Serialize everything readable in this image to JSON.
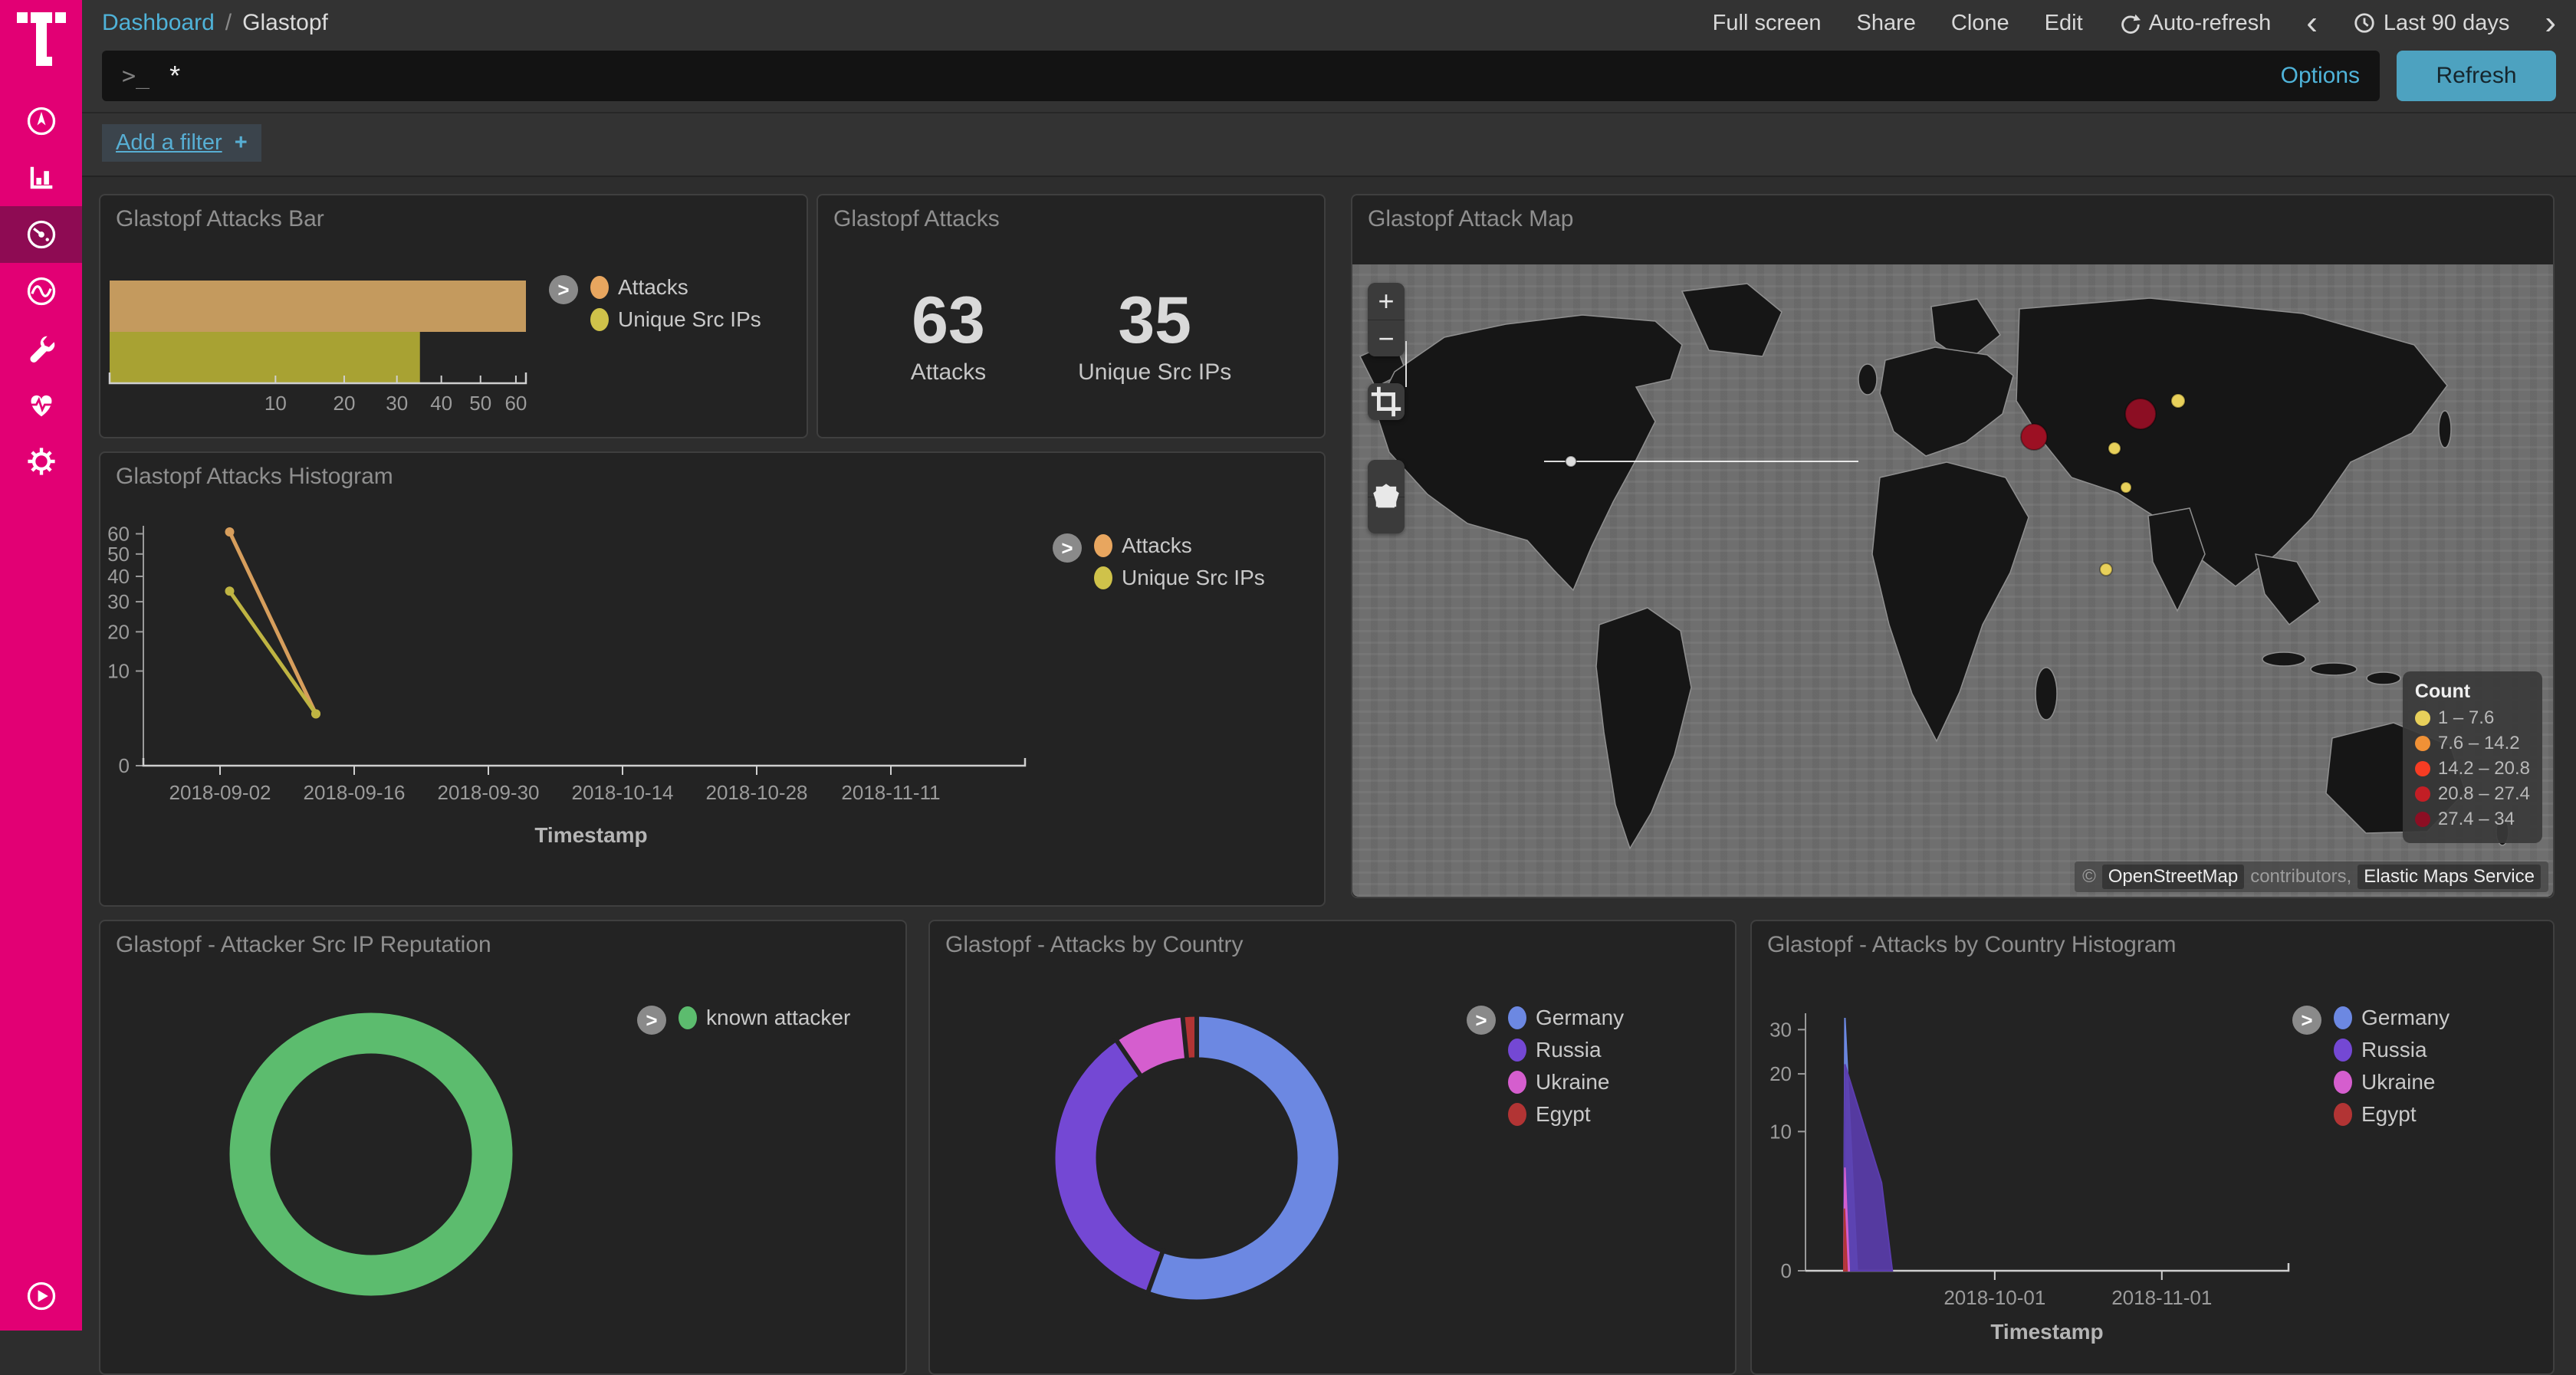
{
  "sidebar": {
    "items": [
      {
        "id": "discover",
        "icon": "compass-icon"
      },
      {
        "id": "visualize",
        "icon": "bar-chart-icon"
      },
      {
        "id": "dashboard",
        "icon": "gauge-icon",
        "selected": true
      },
      {
        "id": "timelion",
        "icon": "wave-icon"
      },
      {
        "id": "dev-tools",
        "icon": "wrench-icon"
      },
      {
        "id": "monitoring",
        "icon": "heartbeat-icon"
      },
      {
        "id": "management",
        "icon": "gear-icon"
      }
    ]
  },
  "topbar": {
    "breadcrumb": {
      "root": "Dashboard",
      "separator": "/",
      "current": "Glastopf"
    },
    "actions": [
      "Full screen",
      "Share",
      "Clone",
      "Edit"
    ],
    "auto_refresh": "Auto-refresh",
    "prev": "‹",
    "next": "›",
    "time_range": "Last 90 days"
  },
  "query_bar": {
    "prompt": ">_",
    "value": "*",
    "options": "Options",
    "refresh": "Refresh"
  },
  "filter_bar": {
    "label": "Add a filter",
    "plus": "+"
  },
  "map_controls": {
    "zoom_in": "+",
    "zoom_out": "−"
  },
  "chart_data": [
    {
      "id": "glastopf-attacks-bar",
      "type": "bar",
      "orientation": "horizontal",
      "title": "Glastopf Attacks Bar",
      "series": [
        {
          "name": "Attacks",
          "value": 63,
          "color": "#c49a5e",
          "legend_color": "#e8a65f"
        },
        {
          "name": "Unique Src IPs",
          "value": 35,
          "color": "#a8a233",
          "legend_color": "#cfc24a"
        }
      ],
      "x_ticks": [
        10,
        20,
        30,
        40,
        50,
        60
      ],
      "x_scale": "sqrt",
      "x_max": 63
    },
    {
      "id": "glastopf-attacks-metric",
      "type": "metric",
      "title": "Glastopf Attacks",
      "metrics": [
        {
          "label": "Attacks",
          "value": "63"
        },
        {
          "label": "Unique Src IPs",
          "value": "35"
        }
      ]
    },
    {
      "id": "glastopf-attack-map",
      "type": "map",
      "title": "Glastopf Attack Map",
      "legend_title": "Count",
      "legend": [
        {
          "label": "1 – 7.6",
          "color": "#e8d05a"
        },
        {
          "label": "7.6 – 14.2",
          "color": "#f09136"
        },
        {
          "label": "14.2 – 20.8",
          "color": "#f63c23"
        },
        {
          "label": "20.8 – 27.4",
          "color": "#c31e25"
        },
        {
          "label": "27.4 – 34",
          "color": "#8c0e23"
        }
      ],
      "points": [
        {
          "x": 1028,
          "y": 195,
          "r": 20,
          "color": "#8c0e23"
        },
        {
          "x": 889,
          "y": 225,
          "r": 17,
          "color": "#9c1023"
        },
        {
          "x": 1077,
          "y": 178,
          "r": 9,
          "color": "#e8d05a"
        },
        {
          "x": 994,
          "y": 240,
          "r": 8,
          "color": "#e8d05a"
        },
        {
          "x": 983,
          "y": 398,
          "r": 8,
          "color": "#e8d05a"
        },
        {
          "x": 1009,
          "y": 291,
          "r": 7,
          "color": "#e8d05a"
        },
        {
          "x": 285,
          "y": 257,
          "r": 7,
          "color": "#dddddd"
        }
      ],
      "attribution": {
        "copyright": "©",
        "osm": "OpenStreetMap",
        "middle": "contributors,",
        "ems": "Elastic Maps Service"
      }
    },
    {
      "id": "glastopf-attacks-histogram",
      "type": "line",
      "title": "Glastopf Attacks Histogram",
      "x_points": [
        "2018-09-03",
        "2018-09-12"
      ],
      "series": [
        {
          "name": "Attacks",
          "values": [
            61,
            3
          ],
          "color": "#d79e5c",
          "legend_color": "#e8a65f"
        },
        {
          "name": "Unique Src IPs",
          "values": [
            34,
            3
          ],
          "color": "#bfb442",
          "legend_color": "#cfc24a"
        }
      ],
      "x_ticks": [
        "2018-09-02",
        "2018-09-16",
        "2018-09-30",
        "2018-10-14",
        "2018-10-28",
        "2018-11-11"
      ],
      "y_ticks": [
        0,
        10,
        20,
        30,
        40,
        50,
        60
      ],
      "y_scale": "sqrt",
      "y_max": 63,
      "xlabel": "Timestamp"
    },
    {
      "id": "glastopf-attacker-src-ip-reputation",
      "type": "pie",
      "donut": true,
      "title": "Glastopf - Attacker Src IP Reputation",
      "slices": [
        {
          "label": "known attacker",
          "value": 35,
          "color": "#5cbc6e"
        }
      ]
    },
    {
      "id": "glastopf-attacks-by-country",
      "type": "pie",
      "donut": true,
      "title": "Glastopf - Attacks by Country",
      "slices": [
        {
          "label": "Germany",
          "value": 35,
          "color": "#6c88e2"
        },
        {
          "label": "Russia",
          "value": 22,
          "color": "#7448d4"
        },
        {
          "label": "Ukraine",
          "value": 5,
          "color": "#d55ece"
        },
        {
          "label": "Egypt",
          "value": 1,
          "color": "#b23434"
        }
      ]
    },
    {
      "id": "glastopf-attacks-by-country-histogram",
      "type": "area",
      "title": "Glastopf - Attacks by Country Histogram",
      "x_origin": "2018-09-03",
      "series": [
        {
          "name": "Germany",
          "color": "#6c88e2",
          "legend_color": "#6c88e2",
          "points": [
            [
              0,
              0
            ],
            [
              0.2,
              33
            ],
            [
              2.5,
              0
            ]
          ]
        },
        {
          "name": "Russia",
          "color": "#5b3dae",
          "legend_color": "#7448d4",
          "points": [
            [
              0,
              0
            ],
            [
              0.2,
              22
            ],
            [
              7,
              4
            ],
            [
              9,
              0
            ]
          ]
        },
        {
          "name": "Ukraine",
          "color": "#d55ece",
          "legend_color": "#d55ece",
          "points": [
            [
              0,
              0
            ],
            [
              0.2,
              5.5
            ],
            [
              1,
              0
            ]
          ]
        },
        {
          "name": "Egypt",
          "color": "#b23434",
          "legend_color": "#b23434",
          "points": [
            [
              0,
              0
            ],
            [
              0.1,
              2
            ],
            [
              0.6,
              0
            ]
          ]
        }
      ],
      "x_ticks": [
        "2018-10-01",
        "2018-11-01"
      ],
      "y_ticks": [
        0,
        10,
        20,
        30
      ],
      "y_scale": "sqrt",
      "y_max": 33,
      "xlabel": "Timestamp"
    }
  ]
}
